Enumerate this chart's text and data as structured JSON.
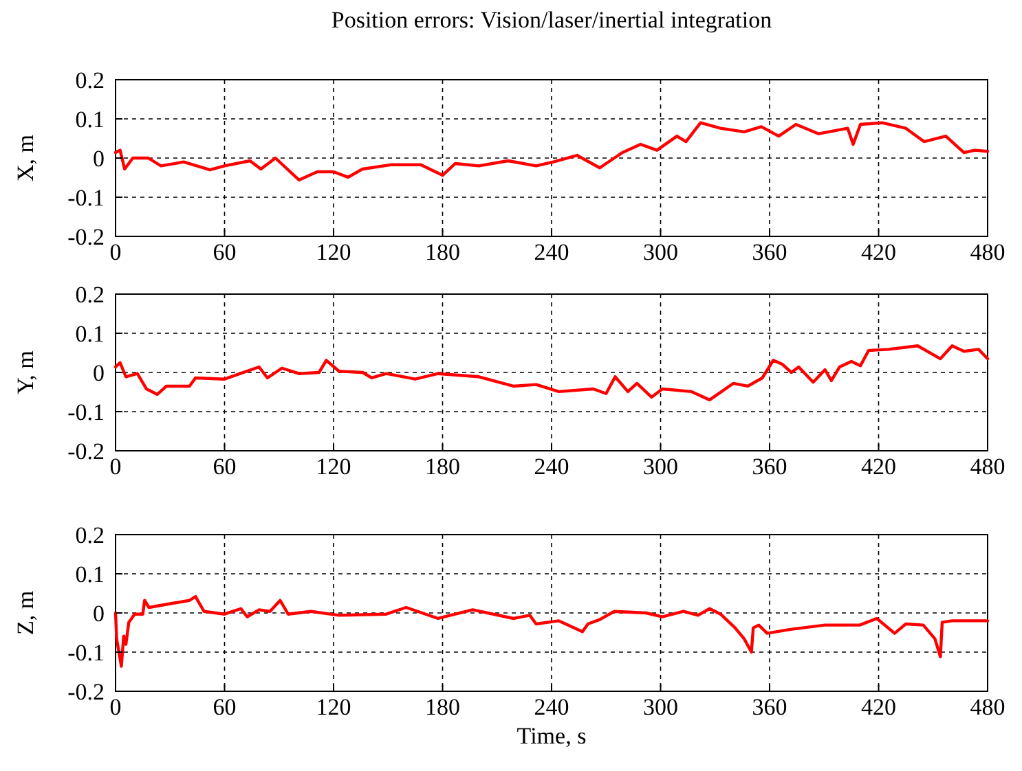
{
  "chart_data": [
    {
      "type": "line",
      "title": "Position errors: Vision/laser/inertial integration",
      "ylabel": "X, m",
      "xlim": [
        0,
        480
      ],
      "xticks": [
        0,
        60,
        120,
        180,
        240,
        300,
        360,
        420,
        480
      ],
      "ylim": [
        -0.2,
        0.2
      ],
      "yticks": [
        -0.2,
        -0.1,
        0,
        0.1,
        0.2
      ],
      "grid": true,
      "line_style": "solid",
      "series": [
        {
          "color": "#ff0000",
          "x": [
            0,
            2.5,
            5,
            9.5,
            18,
            25,
            37.5,
            52,
            60,
            74,
            80,
            88,
            101,
            111,
            120,
            128,
            136,
            152,
            168,
            180,
            187,
            200,
            216,
            231.5,
            241,
            254,
            266.5,
            279,
            289,
            298,
            309,
            314,
            322,
            333,
            346,
            355.5,
            365,
            374.5,
            387,
            403,
            406,
            410,
            422,
            435,
            445,
            457,
            467,
            473,
            480
          ],
          "values": [
            0.014,
            0.02,
            -0.028,
            0,
            0,
            -0.02,
            -0.01,
            -0.03,
            -0.02,
            -0.007,
            -0.028,
            0,
            -0.056,
            -0.035,
            -0.035,
            -0.049,
            -0.028,
            -0.017,
            -0.017,
            -0.044,
            -0.014,
            -0.02,
            -0.007,
            -0.02,
            -0.01,
            0.007,
            -0.025,
            0.014,
            0.035,
            0.02,
            0.056,
            0.042,
            0.09,
            0.076,
            0.067,
            0.08,
            0.056,
            0.086,
            0.062,
            0.076,
            0.035,
            0.086,
            0.09,
            0.076,
            0.042,
            0.056,
            0.014,
            0.02,
            0.017
          ]
        }
      ]
    },
    {
      "type": "line",
      "ylabel": "Y, m",
      "xlim": [
        0,
        480
      ],
      "xticks": [
        0,
        60,
        120,
        180,
        240,
        300,
        360,
        420,
        480
      ],
      "ylim": [
        -0.2,
        0.2
      ],
      "yticks": [
        -0.2,
        -0.1,
        0,
        0.1,
        0.2
      ],
      "grid": true,
      "line_style": "solid",
      "series": [
        {
          "color": "#ff0000",
          "x": [
            0,
            2.5,
            5.7,
            12,
            17,
            23,
            28,
            40.7,
            44,
            60,
            79,
            83.6,
            91.6,
            101,
            112,
            116,
            123,
            136,
            141,
            149,
            165,
            177.5,
            200,
            219,
            231.5,
            244,
            263,
            270,
            275,
            282,
            287,
            295,
            301,
            317,
            327,
            340,
            348,
            356,
            362,
            367,
            372,
            376,
            384,
            390.5,
            394,
            398.5,
            405,
            410,
            414.5,
            425.6,
            441.5,
            454,
            460.5,
            467,
            475,
            480
          ],
          "values": [
            0.014,
            0.025,
            -0.011,
            -0.003,
            -0.042,
            -0.056,
            -0.035,
            -0.035,
            -0.014,
            -0.017,
            0.014,
            -0.014,
            0.011,
            -0.003,
            0,
            0.031,
            0.003,
            0,
            -0.014,
            -0.003,
            -0.017,
            -0.003,
            -0.011,
            -0.035,
            -0.031,
            -0.049,
            -0.042,
            -0.054,
            -0.011,
            -0.049,
            -0.028,
            -0.063,
            -0.042,
            -0.049,
            -0.07,
            -0.028,
            -0.035,
            -0.014,
            0.031,
            0.021,
            0,
            0.014,
            -0.025,
            0.007,
            -0.021,
            0.014,
            0.028,
            0.017,
            0.056,
            0.059,
            0.068,
            0.035,
            0.068,
            0.054,
            0.059,
            0.035
          ]
        }
      ]
    },
    {
      "type": "line",
      "ylabel": "Z, m",
      "xlabel": "Time, s",
      "xlim": [
        0,
        480
      ],
      "xticks": [
        0,
        60,
        120,
        180,
        240,
        300,
        360,
        420,
        480
      ],
      "ylim": [
        -0.2,
        0.2
      ],
      "yticks": [
        -0.2,
        -0.1,
        0,
        0.1,
        0.2
      ],
      "grid": true,
      "line_style": "solid",
      "series": [
        {
          "color": "#ff0000",
          "x": [
            0,
            0.6,
            3.2,
            4.5,
            5.7,
            7.3,
            10.5,
            15,
            16,
            18.4,
            28,
            40.7,
            44,
            48.7,
            60,
            69,
            72.5,
            79,
            85,
            90.6,
            95,
            107.5,
            123,
            149,
            160,
            177.5,
            196.6,
            219,
            228,
            231.5,
            244,
            257,
            260,
            266.5,
            274.5,
            292,
            301,
            312.6,
            320.6,
            327,
            333,
            341,
            346,
            350,
            351,
            354,
            358.7,
            371.5,
            390.5,
            409.6,
            419,
            428.8,
            435,
            444.6,
            451,
            454,
            455,
            460.5,
            480
          ],
          "values": [
            0,
            -0.066,
            -0.136,
            -0.059,
            -0.08,
            -0.024,
            -0.003,
            -0.003,
            0.032,
            0.014,
            0.022,
            0.032,
            0.042,
            0.004,
            -0.003,
            0.011,
            -0.01,
            0.008,
            0.004,
            0.032,
            -0.003,
            0.004,
            -0.006,
            -0.003,
            0.014,
            -0.014,
            0.008,
            -0.014,
            -0.006,
            -0.028,
            -0.02,
            -0.048,
            -0.028,
            -0.017,
            0.004,
            0,
            -0.01,
            0.004,
            -0.006,
            0.011,
            -0.003,
            -0.038,
            -0.066,
            -0.1,
            -0.038,
            -0.031,
            -0.052,
            -0.042,
            -0.031,
            -0.031,
            -0.014,
            -0.052,
            -0.028,
            -0.031,
            -0.066,
            -0.112,
            -0.024,
            -0.02,
            -0.02
          ]
        }
      ]
    }
  ]
}
